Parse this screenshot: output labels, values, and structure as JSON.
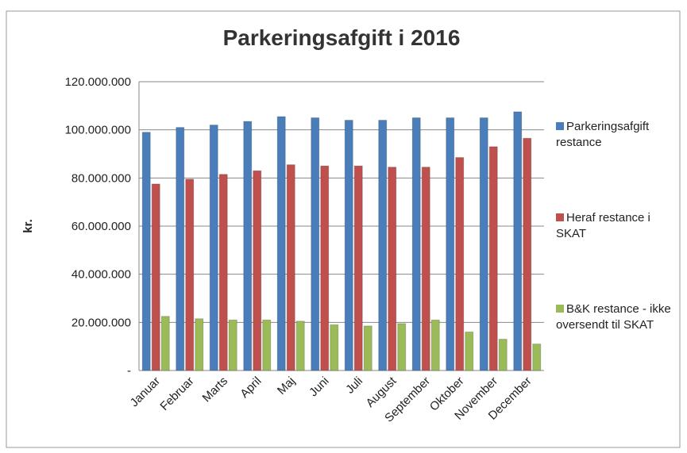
{
  "chart_data": {
    "type": "bar",
    "title": "Parkeringsafgift i 2016",
    "y_label": "kr.",
    "categories": [
      "Januar",
      "Februar",
      "Marts",
      "April",
      "Maj",
      "Juni",
      "Juli",
      "August",
      "September",
      "Oktober",
      "November",
      "December"
    ],
    "series": [
      {
        "name": "Parkeringsafgift restance",
        "color": "#4a7ebb",
        "values": [
          99000000,
          101000000,
          102000000,
          103500000,
          105500000,
          105000000,
          104000000,
          104000000,
          105000000,
          105000000,
          105000000,
          107500000
        ]
      },
      {
        "name": "Heraf restance i SKAT",
        "color": "#c0504d",
        "values": [
          77500000,
          79500000,
          81500000,
          83000000,
          85500000,
          85000000,
          85000000,
          84500000,
          84500000,
          88500000,
          93000000,
          96500000
        ]
      },
      {
        "name": "B&K restance - ikke oversendt til SKAT",
        "color": "#9bbb59",
        "values": [
          22500000,
          21500000,
          21000000,
          21000000,
          20500000,
          19000000,
          18500000,
          19500000,
          21000000,
          16000000,
          13000000,
          11000000
        ]
      }
    ],
    "ylim": [
      0,
      120000000
    ],
    "yticks": [
      {
        "value": 0,
        "label": "-"
      },
      {
        "value": 20000000,
        "label": "20.000.000"
      },
      {
        "value": 40000000,
        "label": "40.000.000"
      },
      {
        "value": 60000000,
        "label": "60.000.000"
      },
      {
        "value": 80000000,
        "label": "80.000.000"
      },
      {
        "value": 100000000,
        "label": "100.000.000"
      },
      {
        "value": 120000000,
        "label": "120.000.000"
      }
    ],
    "grid": true,
    "legend": "right"
  }
}
